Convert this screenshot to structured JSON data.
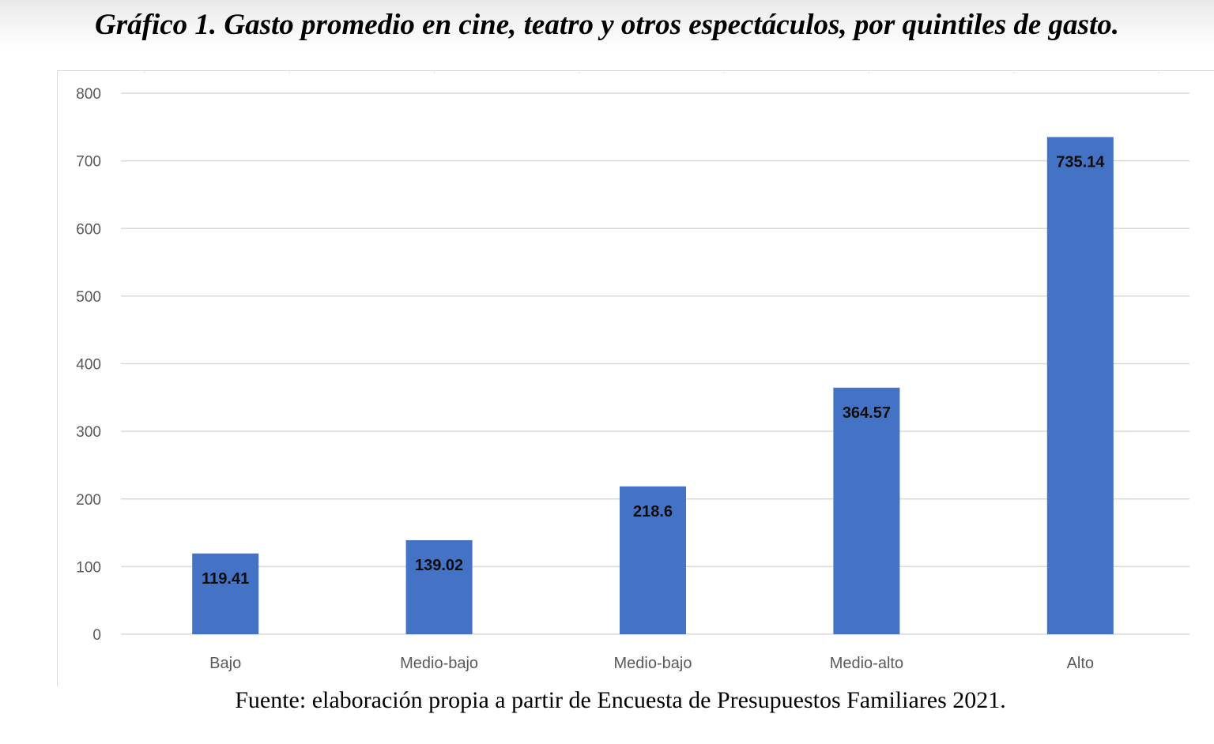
{
  "title": "Gráfico 1. Gasto promedio en cine, teatro y otros espectáculos, por quintiles de gasto.",
  "source": "Fuente: elaboración propia a partir de Encuesta de Presupuestos Familiares 2021.",
  "chart_data": {
    "type": "bar",
    "categories": [
      "Bajo",
      "Medio-bajo",
      "Medio-bajo",
      "Medio-alto",
      "Alto"
    ],
    "values": [
      119.41,
      139.02,
      218.6,
      364.57,
      735.14
    ],
    "data_labels": [
      "119.41",
      "139.02",
      "218.6",
      "364.57",
      "735.14"
    ],
    "xlabel": "",
    "ylabel": "",
    "ylim": [
      0,
      800
    ],
    "yticks": [
      0,
      100,
      200,
      300,
      400,
      500,
      600,
      700,
      800
    ],
    "grid": true,
    "legend": "none",
    "bar_color": "#4472c4",
    "grid_color": "#d9d9d9",
    "label_color": "#595959"
  }
}
